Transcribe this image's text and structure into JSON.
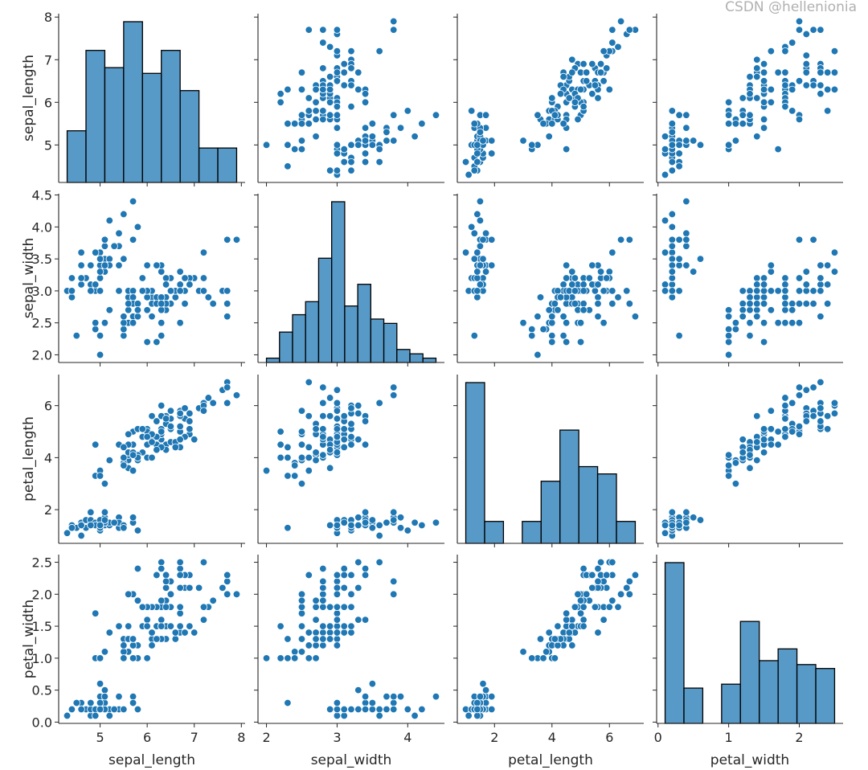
{
  "chart_data": {
    "type": "scatter",
    "kind": "pairplot",
    "diagonal": "hist",
    "variables": [
      "sepal_length",
      "sepal_width",
      "petal_length",
      "petal_width"
    ],
    "color": "#1f77b4",
    "hist_fill": "#1f77b4",
    "hist_alpha": 0.75,
    "grid": false,
    "axes": {
      "sepal_length": {
        "label": "sepal_length",
        "lim": [
          4.12,
          8.08
        ],
        "ticks": [
          5,
          6,
          7,
          8
        ],
        "tick_labels": [
          "5",
          "6",
          "7",
          "8"
        ],
        "hist_bins": 9
      },
      "sepal_width": {
        "label": "sepal_width",
        "lim": [
          1.88,
          4.52
        ],
        "ticks": [
          2.0,
          2.5,
          3.0,
          3.5,
          4.0,
          4.5
        ],
        "tick_labels": [
          "2.0",
          "2.5",
          "3.0",
          "3.5",
          "4.0",
          "4.5"
        ],
        "x_ticks": [
          2,
          3,
          4
        ],
        "x_tick_labels": [
          "2",
          "3",
          "4"
        ],
        "hist_bins": 13
      },
      "petal_length": {
        "label": "petal_length",
        "lim": [
          0.705,
          7.195
        ],
        "ticks": [
          2,
          4,
          6
        ],
        "tick_labels": [
          "2",
          "4",
          "6"
        ],
        "hist_bins": 9
      },
      "petal_width": {
        "label": "petal_width",
        "lim": [
          -0.02,
          2.62
        ],
        "ticks": [
          0.0,
          0.5,
          1.0,
          1.5,
          2.0,
          2.5
        ],
        "tick_labels": [
          "0.0",
          "0.5",
          "1.0",
          "1.5",
          "2.0",
          "2.5"
        ],
        "x_ticks": [
          0,
          1,
          2
        ],
        "x_tick_labels": [
          "0",
          "1",
          "2"
        ],
        "hist_bins": 9
      }
    },
    "data": {
      "sepal_length": [
        5.1,
        4.9,
        4.7,
        4.6,
        5.0,
        5.4,
        4.6,
        5.0,
        4.4,
        4.9,
        5.4,
        4.8,
        4.8,
        4.3,
        5.8,
        5.7,
        5.4,
        5.1,
        5.7,
        5.1,
        5.4,
        5.1,
        4.6,
        5.1,
        4.8,
        5.0,
        5.0,
        5.2,
        5.2,
        4.7,
        4.8,
        5.4,
        5.2,
        5.5,
        4.9,
        5.0,
        5.5,
        4.9,
        4.4,
        5.1,
        5.0,
        4.5,
        4.4,
        5.0,
        5.1,
        4.8,
        5.1,
        4.6,
        5.3,
        5.0,
        7.0,
        6.4,
        6.9,
        5.5,
        6.5,
        5.7,
        6.3,
        4.9,
        6.6,
        5.2,
        5.0,
        5.9,
        6.0,
        6.1,
        5.6,
        6.7,
        5.6,
        5.8,
        6.2,
        5.6,
        5.9,
        6.1,
        6.3,
        6.1,
        6.4,
        6.6,
        6.8,
        6.7,
        6.0,
        5.7,
        5.5,
        5.5,
        5.8,
        6.0,
        5.4,
        6.0,
        6.7,
        6.3,
        5.6,
        5.5,
        5.5,
        6.1,
        5.8,
        5.0,
        5.6,
        5.7,
        5.7,
        6.2,
        5.1,
        5.7,
        6.3,
        5.8,
        7.1,
        6.3,
        6.5,
        7.6,
        4.9,
        7.3,
        6.7,
        7.2,
        6.5,
        6.4,
        6.8,
        5.7,
        5.8,
        6.4,
        6.5,
        7.7,
        7.7,
        6.0,
        6.9,
        5.6,
        7.7,
        6.3,
        6.7,
        7.2,
        6.2,
        6.1,
        6.4,
        7.2,
        7.4,
        7.9,
        6.4,
        6.3,
        6.1,
        7.7,
        6.3,
        6.4,
        6.0,
        6.9,
        6.7,
        6.9,
        5.8,
        6.8,
        6.7,
        6.7,
        6.3,
        6.5,
        6.2,
        5.9
      ],
      "sepal_width": [
        3.5,
        3.0,
        3.2,
        3.1,
        3.6,
        3.9,
        3.4,
        3.4,
        2.9,
        3.1,
        3.7,
        3.4,
        3.0,
        3.0,
        4.0,
        4.4,
        3.9,
        3.5,
        3.8,
        3.8,
        3.4,
        3.7,
        3.6,
        3.3,
        3.4,
        3.0,
        3.4,
        3.5,
        3.4,
        3.2,
        3.1,
        3.4,
        4.1,
        4.2,
        3.1,
        3.2,
        3.5,
        3.6,
        3.0,
        3.4,
        3.5,
        2.3,
        3.2,
        3.5,
        3.8,
        3.0,
        3.8,
        3.2,
        3.7,
        3.3,
        3.2,
        3.2,
        3.1,
        2.3,
        2.8,
        2.8,
        3.3,
        2.4,
        2.9,
        2.7,
        2.0,
        3.0,
        2.2,
        2.9,
        2.9,
        3.1,
        3.0,
        2.7,
        2.2,
        2.5,
        3.2,
        2.8,
        2.5,
        2.8,
        2.9,
        3.0,
        2.8,
        3.0,
        2.9,
        2.6,
        2.4,
        2.4,
        2.7,
        2.7,
        3.0,
        3.4,
        3.1,
        2.3,
        3.0,
        2.5,
        2.6,
        3.0,
        2.6,
        2.3,
        2.7,
        3.0,
        2.9,
        2.9,
        2.5,
        2.8,
        3.3,
        2.7,
        3.0,
        2.9,
        3.0,
        3.0,
        2.5,
        2.9,
        2.5,
        3.6,
        3.2,
        2.7,
        3.0,
        2.5,
        2.8,
        3.2,
        3.0,
        3.8,
        2.6,
        2.2,
        3.2,
        2.8,
        2.8,
        2.7,
        3.3,
        3.2,
        2.8,
        3.0,
        2.8,
        3.0,
        2.8,
        3.8,
        2.8,
        2.8,
        2.6,
        3.0,
        3.4,
        3.1,
        3.0,
        3.1,
        3.1,
        3.1,
        2.7,
        3.2,
        3.3,
        3.0,
        2.5,
        3.0,
        3.4,
        3.0
      ],
      "petal_length": [
        1.4,
        1.4,
        1.3,
        1.5,
        1.4,
        1.7,
        1.4,
        1.5,
        1.4,
        1.5,
        1.5,
        1.6,
        1.4,
        1.1,
        1.2,
        1.5,
        1.3,
        1.4,
        1.7,
        1.5,
        1.7,
        1.5,
        1.0,
        1.7,
        1.9,
        1.6,
        1.6,
        1.5,
        1.4,
        1.6,
        1.6,
        1.5,
        1.5,
        1.4,
        1.5,
        1.2,
        1.3,
        1.4,
        1.3,
        1.5,
        1.3,
        1.3,
        1.3,
        1.6,
        1.9,
        1.4,
        1.6,
        1.4,
        1.5,
        1.4,
        4.7,
        4.5,
        4.9,
        4.0,
        4.6,
        4.5,
        4.7,
        3.3,
        4.6,
        3.9,
        3.5,
        4.2,
        4.0,
        4.7,
        3.6,
        4.4,
        4.5,
        4.1,
        4.5,
        3.9,
        4.8,
        4.0,
        4.9,
        4.7,
        4.3,
        4.4,
        4.8,
        5.0,
        4.5,
        3.5,
        3.8,
        3.7,
        3.9,
        5.1,
        4.5,
        4.5,
        4.7,
        4.4,
        4.1,
        4.0,
        4.4,
        4.6,
        4.0,
        3.3,
        4.2,
        4.2,
        4.2,
        4.3,
        3.0,
        4.1,
        6.0,
        5.1,
        5.9,
        5.6,
        5.8,
        6.6,
        4.5,
        6.3,
        5.8,
        6.1,
        5.1,
        5.3,
        5.5,
        5.0,
        5.1,
        5.3,
        5.5,
        6.7,
        6.9,
        5.0,
        5.7,
        4.9,
        6.7,
        4.9,
        5.7,
        6.0,
        4.8,
        4.9,
        5.6,
        5.8,
        6.1,
        6.4,
        5.6,
        5.1,
        5.6,
        6.1,
        5.6,
        5.5,
        4.8,
        5.4,
        5.6,
        5.1,
        5.1,
        5.9,
        5.7,
        5.2,
        5.0,
        5.2,
        5.4,
        5.1
      ],
      "petal_width": [
        0.2,
        0.2,
        0.2,
        0.2,
        0.2,
        0.4,
        0.3,
        0.2,
        0.2,
        0.1,
        0.2,
        0.2,
        0.1,
        0.1,
        0.2,
        0.4,
        0.4,
        0.3,
        0.3,
        0.3,
        0.2,
        0.4,
        0.2,
        0.5,
        0.2,
        0.2,
        0.4,
        0.2,
        0.2,
        0.2,
        0.2,
        0.4,
        0.1,
        0.2,
        0.2,
        0.2,
        0.2,
        0.1,
        0.2,
        0.2,
        0.3,
        0.3,
        0.2,
        0.6,
        0.4,
        0.3,
        0.2,
        0.2,
        0.2,
        0.2,
        1.4,
        1.5,
        1.5,
        1.3,
        1.5,
        1.3,
        1.6,
        1.0,
        1.3,
        1.4,
        1.0,
        1.5,
        1.0,
        1.4,
        1.3,
        1.4,
        1.5,
        1.0,
        1.5,
        1.1,
        1.8,
        1.3,
        1.5,
        1.2,
        1.3,
        1.4,
        1.4,
        1.7,
        1.5,
        1.0,
        1.1,
        1.0,
        1.2,
        1.6,
        1.5,
        1.6,
        1.5,
        1.3,
        1.3,
        1.3,
        1.2,
        1.4,
        1.2,
        1.0,
        1.3,
        1.2,
        1.3,
        1.3,
        1.1,
        1.3,
        2.5,
        1.9,
        2.1,
        1.8,
        2.2,
        2.1,
        1.7,
        1.8,
        1.8,
        2.5,
        2.0,
        1.9,
        2.1,
        2.0,
        2.4,
        2.3,
        1.8,
        2.2,
        2.3,
        1.5,
        2.3,
        2.0,
        2.0,
        1.8,
        2.1,
        1.8,
        1.8,
        1.8,
        2.1,
        1.6,
        1.9,
        2.0,
        2.2,
        1.5,
        1.4,
        2.3,
        2.4,
        1.8,
        1.8,
        2.1,
        2.4,
        2.3,
        1.9,
        2.3,
        2.5,
        2.3,
        1.9,
        2.0,
        2.3,
        1.8
      ]
    }
  },
  "watermark": "CSDN @hellenionia"
}
